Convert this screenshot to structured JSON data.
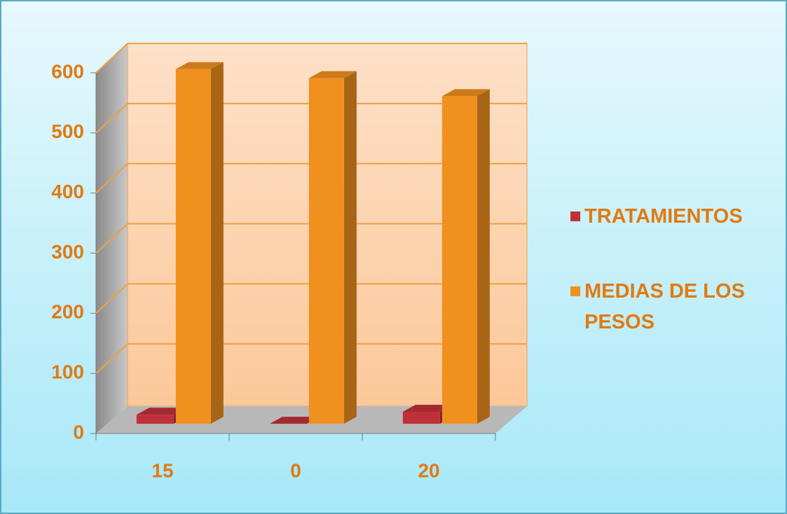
{
  "chart_data": {
    "type": "bar3d",
    "categories": [
      "15",
      "0",
      "20"
    ],
    "series": [
      {
        "name": "TRATAMIENTOS",
        "color": "#c0303a",
        "values": [
          15,
          0,
          20
        ]
      },
      {
        "name": "MEDIAS DE LOS PESOS",
        "color": "#f0901e",
        "values": [
          590,
          575,
          545
        ]
      }
    ],
    "ylim": [
      0,
      600
    ],
    "yticks": [
      0,
      100,
      200,
      300,
      400,
      500,
      600
    ],
    "grid": true,
    "legend": "right"
  }
}
